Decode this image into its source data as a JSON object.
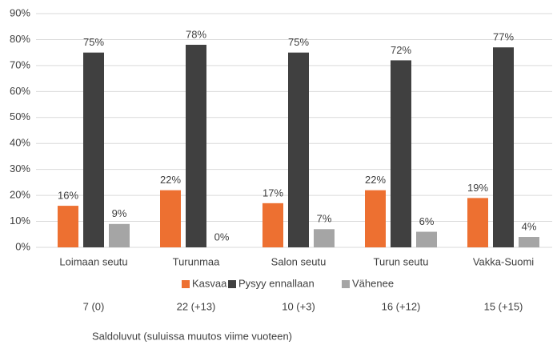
{
  "chart_data": {
    "type": "bar",
    "categories": [
      "Loimaan seutu",
      "Turunmaa",
      "Salon seutu",
      "Turun seutu",
      "Vakka-Suomi"
    ],
    "series": [
      {
        "name": "Kasvaa",
        "color": "#ed7031",
        "values": [
          16,
          22,
          17,
          22,
          19
        ],
        "value_labels": [
          "16%",
          "22%",
          "17%",
          "22%",
          "19%"
        ]
      },
      {
        "name": "Pysyy ennallaan",
        "color": "#404040",
        "values": [
          75,
          78,
          75,
          72,
          77
        ],
        "value_labels": [
          "75%",
          "78%",
          "75%",
          "72%",
          "77%"
        ]
      },
      {
        "name": "Vähenee",
        "color": "#a5a5a5",
        "values": [
          9,
          0,
          7,
          6,
          4
        ],
        "value_labels": [
          "9%",
          "0%",
          "7%",
          "6%",
          "4%"
        ]
      }
    ],
    "ylim": [
      0,
      90
    ],
    "yticks": [
      {
        "value": 0,
        "label": "0%"
      },
      {
        "value": 10,
        "label": "10%"
      },
      {
        "value": 20,
        "label": "20%"
      },
      {
        "value": 30,
        "label": "30%"
      },
      {
        "value": 40,
        "label": "40%"
      },
      {
        "value": 50,
        "label": "50%"
      },
      {
        "value": 60,
        "label": "60%"
      },
      {
        "value": 70,
        "label": "70%"
      },
      {
        "value": 80,
        "label": "80%"
      },
      {
        "value": 90,
        "label": "90%"
      }
    ],
    "grid": true,
    "legend": "bottom",
    "saldo": [
      "7 (0)",
      "22 (+13)",
      "10 (+3)",
      "16 (+12)",
      "15 (+15)"
    ],
    "note": "Saldoluvut (suluissa muutos viime vuoteen)"
  }
}
